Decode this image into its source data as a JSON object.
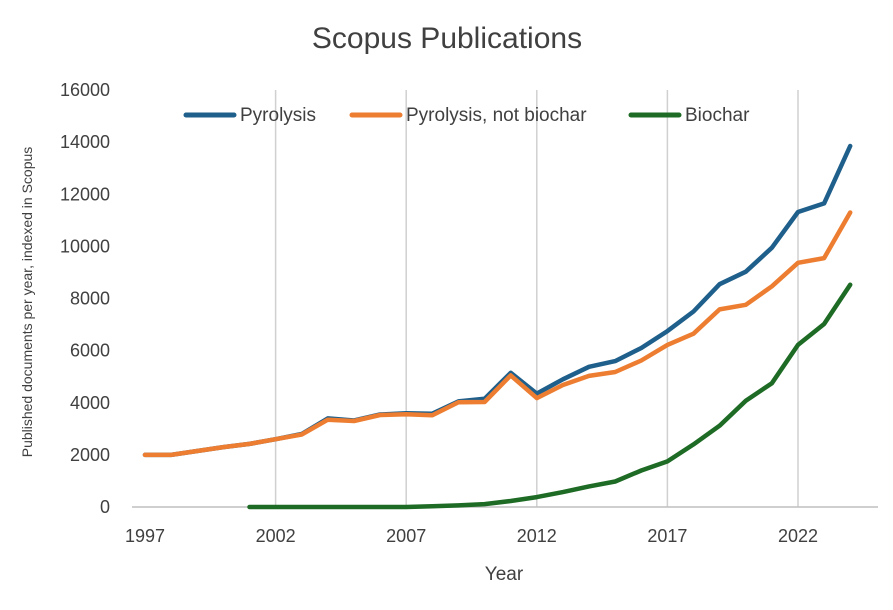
{
  "chart_data": {
    "type": "line",
    "title": "Scopus Publications",
    "xlabel": "Year",
    "ylabel": "Published documents per year, indexed in Scopus",
    "xlim": [
      1997,
      2025
    ],
    "ylim": [
      0,
      16000
    ],
    "x_ticks": [
      "1997",
      "2002",
      "2007",
      "2012",
      "2017",
      "2022"
    ],
    "y_ticks": [
      "0",
      "2000",
      "4000",
      "6000",
      "8000",
      "10000",
      "12000",
      "14000",
      "16000"
    ],
    "grid": "vertical",
    "legend_position": "top",
    "series": [
      {
        "name": "Pyrolysis",
        "color": "#1f5f8b",
        "x": [
          1997,
          1998,
          1999,
          2000,
          2001,
          2002,
          2003,
          2004,
          2005,
          2006,
          2007,
          2008,
          2009,
          2010,
          2011,
          2012,
          2013,
          2014,
          2015,
          2016,
          2017,
          2018,
          2019,
          2020,
          2021,
          2022,
          2023,
          2024
        ],
        "values": [
          2000,
          2000,
          2150,
          2300,
          2420,
          2600,
          2800,
          3400,
          3320,
          3550,
          3600,
          3580,
          4050,
          4150,
          5150,
          4350,
          4900,
          5380,
          5600,
          6100,
          6750,
          7500,
          8550,
          9030,
          9950,
          11320,
          11650,
          13850
        ]
      },
      {
        "name": "Pyrolysis, not biochar",
        "color": "#ed7d31",
        "x": [
          1997,
          1998,
          1999,
          2000,
          2001,
          2002,
          2003,
          2004,
          2005,
          2006,
          2007,
          2008,
          2009,
          2010,
          2011,
          2012,
          2013,
          2014,
          2015,
          2016,
          2017,
          2018,
          2019,
          2020,
          2021,
          2022,
          2023,
          2024
        ],
        "values": [
          2000,
          2000,
          2150,
          2300,
          2420,
          2600,
          2780,
          3350,
          3300,
          3530,
          3560,
          3520,
          4020,
          4030,
          5050,
          4180,
          4680,
          5030,
          5180,
          5620,
          6220,
          6650,
          7580,
          7760,
          8470,
          9370,
          9550,
          11300
        ]
      },
      {
        "name": "Biochar",
        "color": "#1e6b25",
        "x": [
          2001,
          2002,
          2003,
          2004,
          2005,
          2006,
          2007,
          2008,
          2009,
          2010,
          2011,
          2012,
          2013,
          2014,
          2015,
          2016,
          2017,
          2018,
          2019,
          2020,
          2021,
          2022,
          2023,
          2024
        ],
        "values": [
          0,
          0,
          0,
          0,
          0,
          0,
          0,
          30,
          60,
          110,
          230,
          380,
          570,
          790,
          980,
          1400,
          1750,
          2400,
          3120,
          4080,
          4750,
          6220,
          7020,
          8530
        ]
      }
    ]
  }
}
